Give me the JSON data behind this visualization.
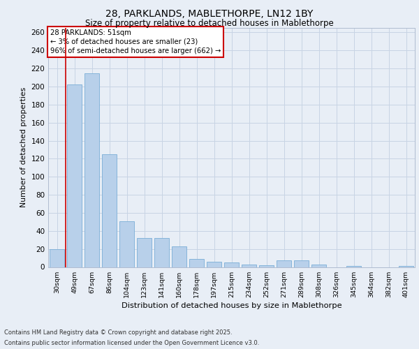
{
  "title_line1": "28, PARKLANDS, MABLETHORPE, LN12 1BY",
  "title_line2": "Size of property relative to detached houses in Mablethorpe",
  "xlabel": "Distribution of detached houses by size in Mablethorpe",
  "ylabel": "Number of detached properties",
  "categories": [
    "30sqm",
    "49sqm",
    "67sqm",
    "86sqm",
    "104sqm",
    "123sqm",
    "141sqm",
    "160sqm",
    "178sqm",
    "197sqm",
    "215sqm",
    "234sqm",
    "252sqm",
    "271sqm",
    "289sqm",
    "308sqm",
    "326sqm",
    "345sqm",
    "364sqm",
    "382sqm",
    "401sqm"
  ],
  "values": [
    20,
    202,
    215,
    125,
    51,
    32,
    32,
    23,
    9,
    6,
    5,
    3,
    2,
    7,
    7,
    3,
    0,
    1,
    0,
    0,
    1
  ],
  "bar_color": "#b8d0ea",
  "bar_edge_color": "#7aaed6",
  "grid_color": "#c8d4e4",
  "background_color": "#e8eef6",
  "annotation_text": "28 PARKLANDS: 51sqm\n← 3% of detached houses are smaller (23)\n96% of semi-detached houses are larger (662) →",
  "annotation_box_color": "#ffffff",
  "annotation_box_edge": "#cc0000",
  "vline_color": "#cc0000",
  "vline_x": 0.5,
  "ylim_max": 265,
  "yticks": [
    0,
    20,
    40,
    60,
    80,
    100,
    120,
    140,
    160,
    180,
    200,
    220,
    240,
    260
  ],
  "footer_line1": "Contains HM Land Registry data © Crown copyright and database right 2025.",
  "footer_line2": "Contains public sector information licensed under the Open Government Licence v3.0."
}
